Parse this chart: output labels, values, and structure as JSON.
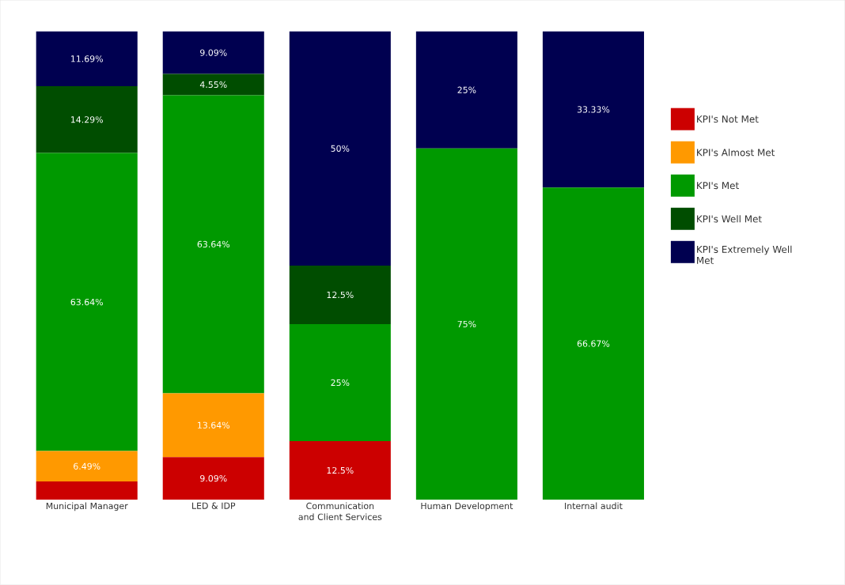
{
  "chart_data": {
    "type": "bar",
    "stacked": true,
    "legend": "right",
    "categories": [
      "Municipal Manager",
      "LED & IDP",
      "Communication and Client Services",
      "Human Development",
      "Internal audit"
    ],
    "series": [
      {
        "name": "KPI's Not Met",
        "color": "#cc0000",
        "values": [
          3.89,
          9.09,
          12.5,
          0,
          0
        ],
        "value_labels": [
          null,
          "9.09%",
          "12.5%",
          null,
          null
        ]
      },
      {
        "name": "KPI's Almost Met",
        "color": "#ff9900",
        "values": [
          6.49,
          13.64,
          0,
          0,
          0
        ],
        "value_labels": [
          "6.49%",
          "13.64%",
          null,
          null,
          null
        ]
      },
      {
        "name": "KPI's Met",
        "color": "#009900",
        "values": [
          63.64,
          63.64,
          25,
          75,
          66.67
        ],
        "value_labels": [
          "63.64%",
          "63.64%",
          "25%",
          "75%",
          "66.67%"
        ]
      },
      {
        "name": "KPI's Well Met",
        "color": "#004d00",
        "values": [
          14.29,
          4.55,
          12.5,
          0,
          0
        ],
        "value_labels": [
          "14.29%",
          "4.55%",
          "12.5%",
          null,
          null
        ]
      },
      {
        "name": "KPI's Extremely Well Met",
        "color": "#000050",
        "values": [
          11.69,
          9.09,
          50,
          25,
          33.33
        ],
        "value_labels": [
          "11.69%",
          "9.09%",
          "50%",
          "25%",
          "33.33%"
        ]
      }
    ]
  }
}
